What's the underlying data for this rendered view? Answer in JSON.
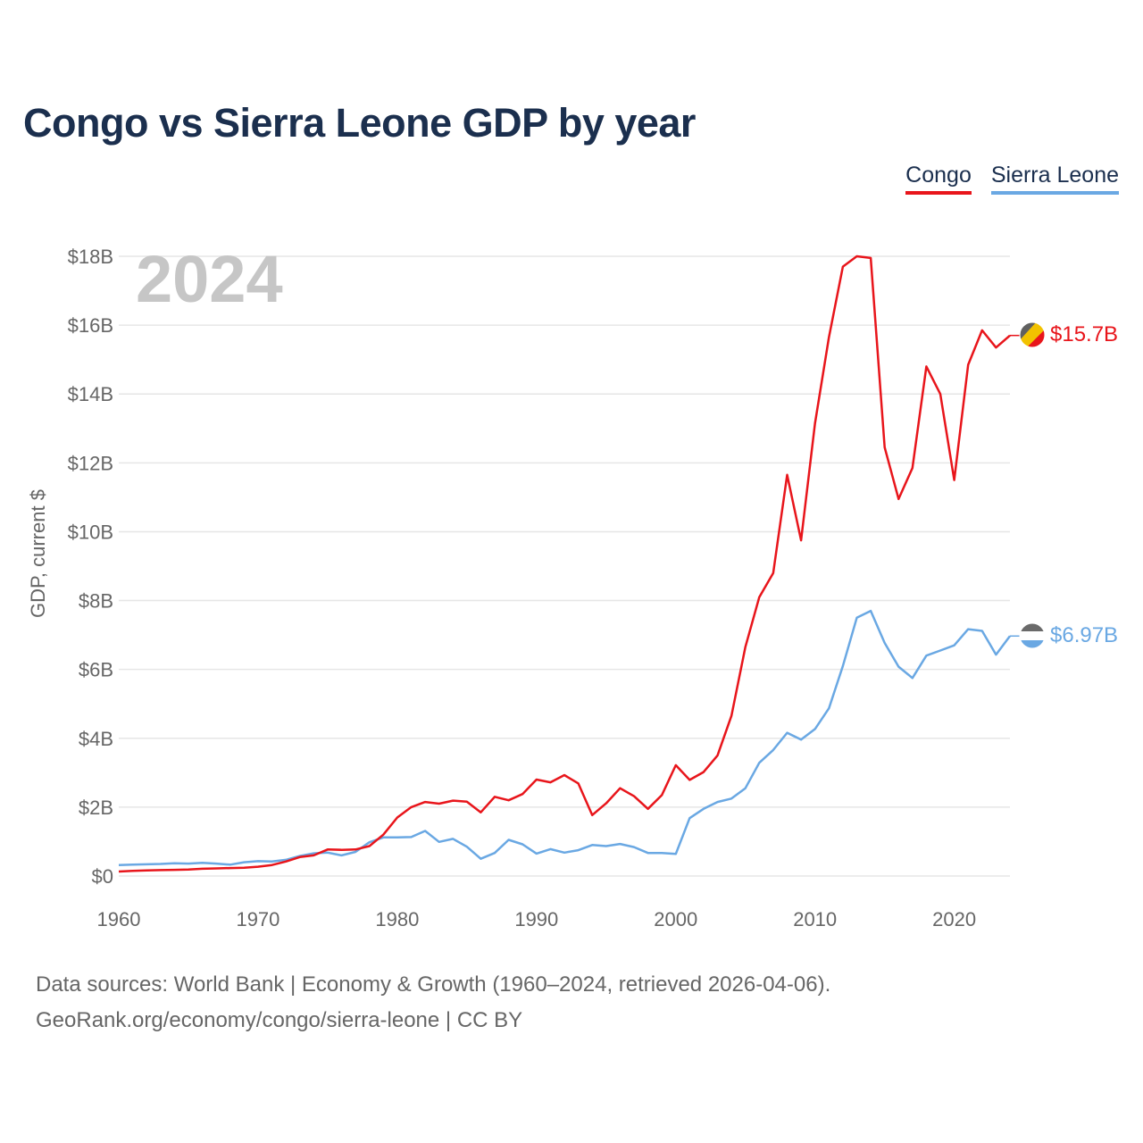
{
  "title": "Congo vs Sierra Leone GDP by year",
  "legend": {
    "congo": "Congo",
    "sierra_leone": "Sierra Leone"
  },
  "year_label": "2024",
  "footer": {
    "line1": "Data sources: World Bank | Economy & Growth (1960–2024, retrieved 2026-04-06).",
    "line2": "GeoRank.org/economy/congo/sierra-leone | CC BY"
  },
  "colors": {
    "congo": "#e8151b",
    "sierra_leone": "#6aa8e3",
    "grid": "#e6e6e6",
    "text": "#666666"
  },
  "chart_data": {
    "type": "line",
    "title": "Congo vs Sierra Leone GDP by year",
    "xlabel": "",
    "ylabel": "GDP, current $",
    "xlim": [
      1960,
      2024
    ],
    "ylim": [
      0,
      18
    ],
    "y_unit": "billion USD",
    "x_ticks": [
      1960,
      1970,
      1980,
      1990,
      2000,
      2010,
      2020
    ],
    "x_tick_labels": [
      "1960",
      "1970",
      "1980",
      "1990",
      "2000",
      "2010",
      "2020"
    ],
    "y_ticks": [
      0,
      2,
      4,
      6,
      8,
      10,
      12,
      14,
      16,
      18
    ],
    "y_tick_labels": [
      "$0",
      "$2B",
      "$4B",
      "$6B",
      "$8B",
      "$10B",
      "$12B",
      "$14B",
      "$16B",
      "$18B"
    ],
    "x": [
      1960,
      1961,
      1962,
      1963,
      1964,
      1965,
      1966,
      1967,
      1968,
      1969,
      1970,
      1971,
      1972,
      1973,
      1974,
      1975,
      1976,
      1977,
      1978,
      1979,
      1980,
      1981,
      1982,
      1983,
      1984,
      1985,
      1986,
      1987,
      1988,
      1989,
      1990,
      1991,
      1992,
      1993,
      1994,
      1995,
      1996,
      1997,
      1998,
      1999,
      2000,
      2001,
      2002,
      2003,
      2004,
      2005,
      2006,
      2007,
      2008,
      2009,
      2010,
      2011,
      2012,
      2013,
      2014,
      2015,
      2016,
      2017,
      2018,
      2019,
      2020,
      2021,
      2022,
      2023,
      2024
    ],
    "series": [
      {
        "name": "Congo",
        "end_label": "$15.7B",
        "values": [
          0.13,
          0.15,
          0.16,
          0.17,
          0.18,
          0.19,
          0.21,
          0.22,
          0.23,
          0.24,
          0.27,
          0.32,
          0.42,
          0.55,
          0.6,
          0.77,
          0.76,
          0.77,
          0.87,
          1.2,
          1.7,
          2.0,
          2.15,
          2.1,
          2.19,
          2.16,
          1.85,
          2.3,
          2.2,
          2.38,
          2.8,
          2.72,
          2.93,
          2.69,
          1.77,
          2.11,
          2.55,
          2.32,
          1.95,
          2.35,
          3.22,
          2.79,
          3.02,
          3.5,
          4.65,
          6.65,
          8.1,
          8.8,
          11.65,
          9.75,
          13.15,
          15.65,
          17.7,
          18.0,
          17.95,
          12.45,
          10.95,
          11.85,
          14.8,
          14.0,
          11.5,
          14.85,
          15.85,
          15.35,
          15.7
        ]
      },
      {
        "name": "Sierra Leone",
        "end_label": "$6.97B",
        "values": [
          0.32,
          0.33,
          0.34,
          0.35,
          0.37,
          0.36,
          0.38,
          0.36,
          0.33,
          0.4,
          0.43,
          0.42,
          0.47,
          0.58,
          0.66,
          0.68,
          0.6,
          0.7,
          0.98,
          1.12,
          1.12,
          1.13,
          1.31,
          0.99,
          1.08,
          0.85,
          0.5,
          0.67,
          1.05,
          0.92,
          0.65,
          0.78,
          0.68,
          0.75,
          0.9,
          0.87,
          0.93,
          0.84,
          0.67,
          0.67,
          0.64,
          1.68,
          1.95,
          2.15,
          2.25,
          2.55,
          3.29,
          3.66,
          4.16,
          3.96,
          4.27,
          4.87,
          6.1,
          7.5,
          7.7,
          6.77,
          6.08,
          5.75,
          6.4,
          6.55,
          6.7,
          7.17,
          7.12,
          6.43,
          6.97
        ]
      }
    ]
  }
}
